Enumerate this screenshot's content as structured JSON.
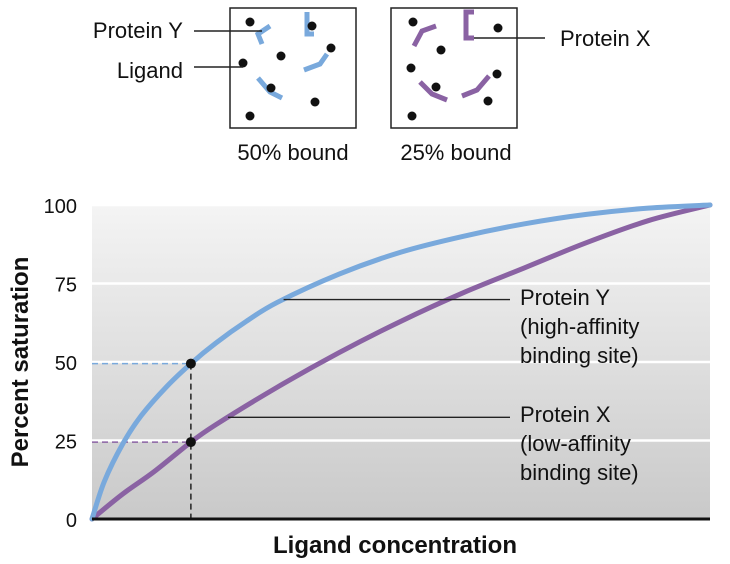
{
  "boxes": {
    "left": {
      "caption": "50% bound",
      "protein_label": "Protein Y",
      "ligand_label": "Ligand"
    },
    "right": {
      "caption": "25% bound",
      "protein_label": "Protein X"
    }
  },
  "colors": {
    "protein_y": "#79a9dc",
    "protein_x": "#8a62a3",
    "ligand": "#111111"
  },
  "chart_data": {
    "type": "line",
    "xlabel": "Ligand concentration",
    "ylabel": "Percent saturation",
    "ylim": [
      0,
      100
    ],
    "yticks": [
      "0",
      "25",
      "50",
      "75",
      "100"
    ],
    "grid": true,
    "xlim": [
      0,
      1
    ],
    "series": [
      {
        "key": "protein_y",
        "color": "#79a9dc",
        "label_lines": [
          "Protein Y",
          "(high-affinity",
          "binding site)"
        ],
        "x": [
          0,
          0.02,
          0.05,
          0.08,
          0.12,
          0.16,
          0.2,
          0.25,
          0.3,
          0.4,
          0.5,
          0.6,
          0.7,
          0.8,
          0.9,
          1.0
        ],
        "y": [
          0,
          12,
          24,
          33,
          42,
          49.5,
          56,
          63,
          69,
          78,
          85,
          90,
          94,
          97,
          99,
          100
        ]
      },
      {
        "key": "protein_x",
        "color": "#8a62a3",
        "label_lines": [
          "Protein X",
          "(low-affinity",
          "binding site)"
        ],
        "x": [
          0,
          0.05,
          0.1,
          0.16,
          0.2,
          0.3,
          0.4,
          0.5,
          0.6,
          0.7,
          0.8,
          0.9,
          1.0
        ],
        "y": [
          0,
          8,
          15,
          24.5,
          30,
          42,
          53,
          63,
          72,
          80,
          88,
          95,
          100
        ]
      }
    ],
    "markers": [
      {
        "x": 0.16,
        "y": 49.5,
        "series": "protein_y"
      },
      {
        "x": 0.16,
        "y": 24.5,
        "series": "protein_x"
      }
    ]
  }
}
